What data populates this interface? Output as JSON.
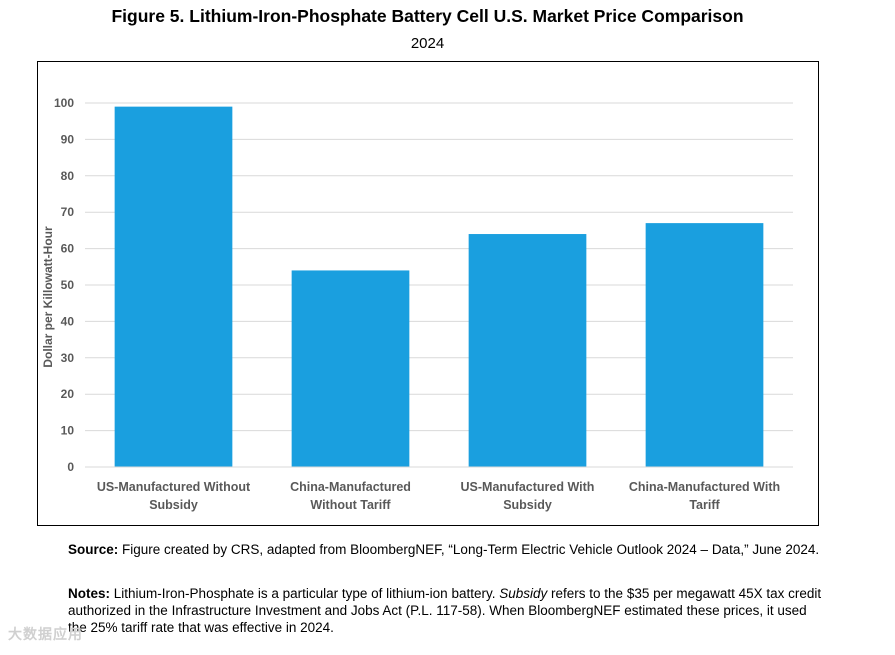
{
  "figure": {
    "title": "Figure 5. Lithium-Iron-Phosphate Battery Cell U.S. Market Price Comparison",
    "subtitle": "2024"
  },
  "chart_data": {
    "type": "bar",
    "title": "",
    "xlabel": "",
    "ylabel": "Dollar per Killowatt-Hour",
    "ylim": [
      0,
      100
    ],
    "yticks": [
      0,
      10,
      20,
      30,
      40,
      50,
      60,
      70,
      80,
      90,
      100
    ],
    "grid": true,
    "bar_color": "#1a9fdf",
    "grid_color": "#d9d9d9",
    "categories": [
      [
        "US-Manufactured Without",
        "Subsidy"
      ],
      [
        "China-Manufactured",
        "Without Tariff"
      ],
      [
        "US-Manufactured With",
        "Subsidy"
      ],
      [
        "China-Manufactured With",
        "Tariff"
      ]
    ],
    "values": [
      99,
      54,
      64,
      67
    ]
  },
  "source": {
    "label": "Source:",
    "text": "Figure created by CRS, adapted from BloombergNEF, “Long-Term Electric Vehicle Outlook 2024 – Data,” June 2024."
  },
  "notes": {
    "label": "Notes:",
    "text_1": "Lithium-Iron-Phosphate is a particular type of lithium-ion battery.",
    "italic_term": "Subsidy",
    "text_2": "refers to the $35 per megawatt 45X tax credit authorized in the Infrastructure Investment and Jobs Act (P.L. 117-58). When BloombergNEF estimated these prices, it used the 25% tariff rate that was effective in 2024."
  },
  "watermark": "大数据应用"
}
